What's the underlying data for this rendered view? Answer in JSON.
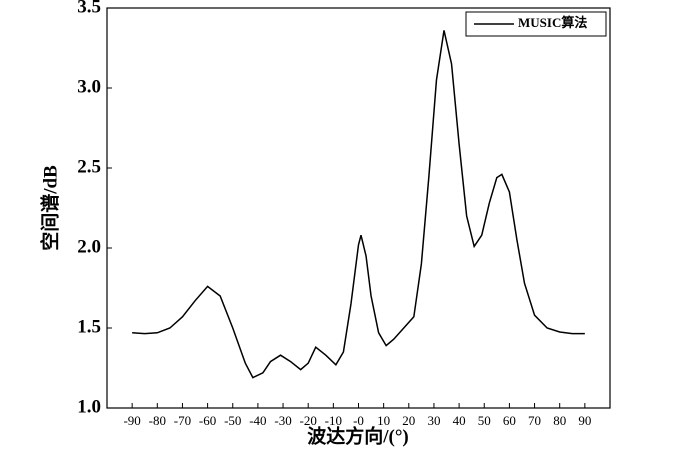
{
  "chart_data": {
    "type": "line",
    "xlabel": "波达方向/(°)",
    "ylabel": "空间谱/dB",
    "x": [
      -90,
      -85,
      -80,
      -75,
      -70,
      -65,
      -60,
      -55,
      -50,
      -45,
      -42,
      -38,
      -35,
      -31,
      -27,
      -23,
      -20,
      -17,
      -13,
      -9,
      -6,
      -3,
      0,
      1,
      3,
      5,
      8,
      11,
      14,
      18,
      22,
      25,
      28,
      31,
      34,
      37,
      40,
      43,
      46,
      49,
      52,
      55,
      57,
      60,
      63,
      66,
      70,
      75,
      80,
      85,
      90
    ],
    "series": [
      {
        "name": "MUSIC算法",
        "color": "#000000",
        "values": [
          1.47,
          1.465,
          1.47,
          1.5,
          1.57,
          1.67,
          1.76,
          1.7,
          1.5,
          1.28,
          1.19,
          1.22,
          1.29,
          1.33,
          1.29,
          1.24,
          1.28,
          1.38,
          1.33,
          1.27,
          1.35,
          1.65,
          2.02,
          2.08,
          1.95,
          1.7,
          1.47,
          1.39,
          1.43,
          1.5,
          1.57,
          1.9,
          2.45,
          3.05,
          3.36,
          3.15,
          2.65,
          2.2,
          2.01,
          2.08,
          2.28,
          2.44,
          2.46,
          2.35,
          2.05,
          1.78,
          1.58,
          1.5,
          1.475,
          1.465,
          1.465
        ]
      }
    ],
    "xlim": [
      -100,
      100
    ],
    "xticks": [
      -90,
      -80,
      -70,
      -60,
      -50,
      -40,
      -30,
      -20,
      -10,
      {
        "value": 0,
        "label": "-0"
      },
      10,
      20,
      30,
      40,
      50,
      60,
      70,
      80,
      90
    ],
    "ylim": [
      1,
      3.5
    ],
    "yticks": [
      {
        "value": 1,
        "label": "1.0"
      },
      1.5,
      {
        "value": 2,
        "label": "2.0"
      },
      2.5,
      {
        "value": 3,
        "label": "3.0"
      },
      3.5
    ],
    "legend": "upper right"
  }
}
